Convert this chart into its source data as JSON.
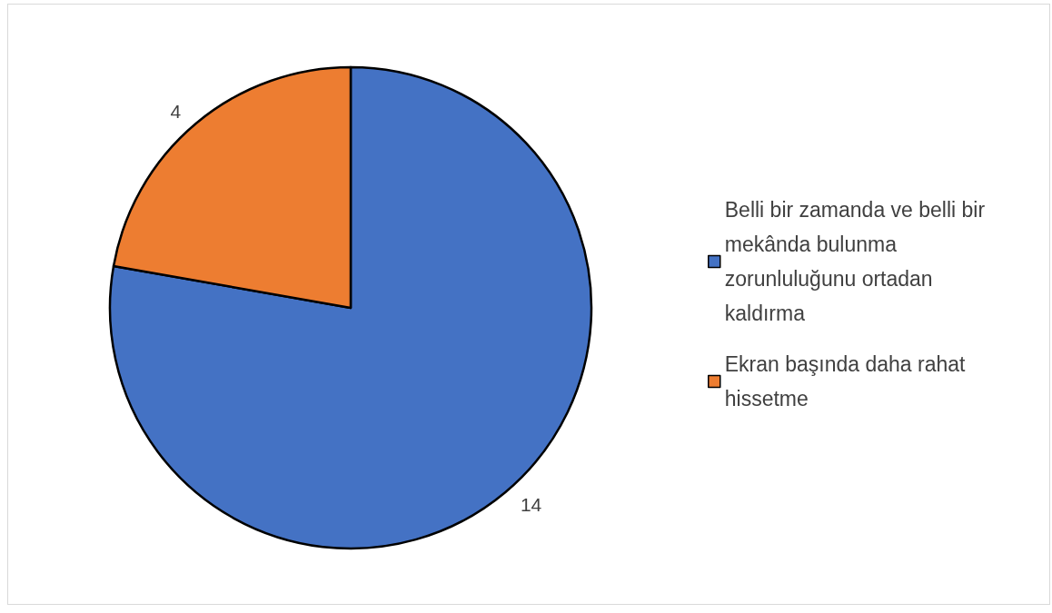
{
  "chart_data": {
    "type": "pie",
    "categories": [
      "Belli bir zamanda ve belli bir mekânda bulunma zorunluluğunu ortadan kaldırma",
      "Ekran başında daha rahat hissetme"
    ],
    "values": [
      14,
      4
    ],
    "colors": [
      "#4472c4",
      "#ed7d31"
    ],
    "data_labels": true,
    "legend": "right"
  }
}
